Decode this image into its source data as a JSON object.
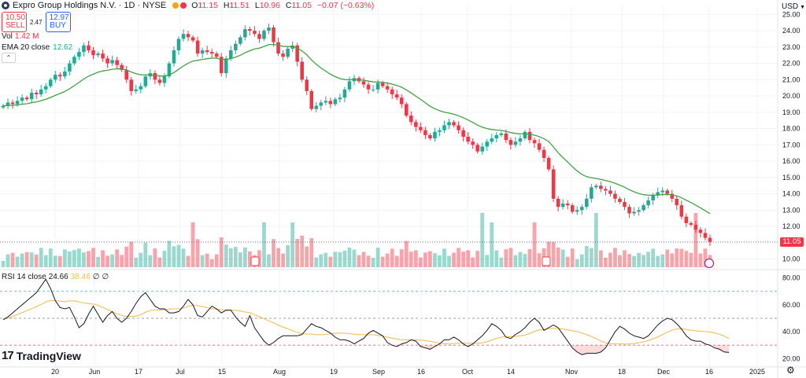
{
  "header": {
    "title": "Expro Group Holdings N.V. · 1D · NYSE",
    "ohlc": {
      "open_label": "O",
      "open": "11.15",
      "high_label": "H",
      "high": "11.51",
      "low_label": "L",
      "low": "10.96",
      "close_label": "C",
      "close": "11.05",
      "change": "−0.07 (−0.63%)"
    },
    "sell_price": "10.50",
    "sell_label": "SELL",
    "spread": "2.47",
    "buy_price": "12.97",
    "buy_label": "BUY"
  },
  "volume_legend": {
    "label": "Vol",
    "value": "1.42 M"
  },
  "ema_legend": {
    "label": "EMA 20 close",
    "value": "12.62"
  },
  "rsi_legend": {
    "label": "RSI 14 close",
    "rsi": "24.66",
    "ma": "38.46",
    "extra1": "∅",
    "extra2": "∅"
  },
  "brand": {
    "name": "TradingView",
    "mark": "17"
  },
  "currency": "USD",
  "last_price_label": "11.05",
  "colors": {
    "up": "#22ab94",
    "down": "#f23645",
    "ema": "#43a047",
    "rsi": "#131722",
    "rsi_ma": "#f0c05a",
    "grid": "#f0f3fa"
  },
  "chart_data": [
    {
      "type": "candlestick",
      "title": "Expro Group Holdings N.V. · 1D · NYSE",
      "ylim": [
        9.5,
        25.5
      ],
      "y_ticks": [
        "10.00",
        "11.00",
        "12.00",
        "13.00",
        "14.00",
        "15.00",
        "16.00",
        "17.00",
        "18.00",
        "19.00",
        "20.00",
        "21.00",
        "22.00",
        "23.00",
        "24.00",
        "25.00"
      ],
      "x_ticks": [
        "20",
        "Jun",
        "17",
        "Jul",
        "15",
        "Aug",
        "19",
        "Sep",
        "16",
        "Oct",
        "14",
        "Nov",
        "18",
        "Dec",
        "16",
        "2025"
      ],
      "closes": [
        19.4,
        19.6,
        19.5,
        19.7,
        19.9,
        19.8,
        20.2,
        20.1,
        20.4,
        20.6,
        21.0,
        21.3,
        21.2,
        21.5,
        22.0,
        22.4,
        22.7,
        23.1,
        22.8,
        22.5,
        22.6,
        22.3,
        22.0,
        22.2,
        21.9,
        21.6,
        21.0,
        20.3,
        20.4,
        20.6,
        21.2,
        21.4,
        21.0,
        20.8,
        21.2,
        22.0,
        22.8,
        23.5,
        23.8,
        23.6,
        23.4,
        22.6,
        22.8,
        22.7,
        22.6,
        22.4,
        21.4,
        22.3,
        22.8,
        23.2,
        23.6,
        24.1,
        24.0,
        23.8,
        23.5,
        24.0,
        24.2,
        23.3,
        22.6,
        22.4,
        22.9,
        23.1,
        22.1,
        21.0,
        20.3,
        19.2,
        19.4,
        19.6,
        19.7,
        19.5,
        19.8,
        19.9,
        20.4,
        20.9,
        21.1,
        20.9,
        20.7,
        20.4,
        20.4,
        20.8,
        20.6,
        20.4,
        20.1,
        19.9,
        19.5,
        18.8,
        18.4,
        18.1,
        17.9,
        17.6,
        17.4,
        17.8,
        17.9,
        18.2,
        18.4,
        18.2,
        17.9,
        17.5,
        17.2,
        17.0,
        16.6,
        16.9,
        17.2,
        17.4,
        17.6,
        17.7,
        17.3,
        17.0,
        17.2,
        17.4,
        17.8,
        17.3,
        17.1,
        16.7,
        16.2,
        15.5,
        13.7,
        13.2,
        13.4,
        13.3,
        12.9,
        13.0,
        13.2,
        13.7,
        14.4,
        14.5,
        14.3,
        14.2,
        14.0,
        13.7,
        13.5,
        13.2,
        12.8,
        12.9,
        13.0,
        13.3,
        13.6,
        13.9,
        14.1,
        14.2,
        14.0,
        13.7,
        13.3,
        12.6,
        12.2,
        12.1,
        11.8,
        11.6,
        11.3,
        11.05
      ],
      "volume_label": "Vol",
      "ema_label": "EMA 20 close",
      "ema_last": 12.62,
      "last_close": 11.05
    },
    {
      "type": "line",
      "title": "RSI 14 close",
      "ylim": [
        15,
        85
      ],
      "y_ticks": [
        "20.00",
        "40.00",
        "60.00",
        "80.00"
      ],
      "bands": [
        30,
        50,
        70
      ],
      "rsi": [
        49,
        51,
        54,
        57,
        60,
        63,
        66,
        69,
        74,
        79,
        72,
        63,
        58,
        57,
        58,
        51,
        43,
        46,
        53,
        59,
        53,
        47,
        52,
        55,
        50,
        47,
        50,
        55,
        61,
        66,
        69,
        64,
        59,
        57,
        57,
        54,
        54,
        55,
        59,
        64,
        60,
        52,
        51,
        55,
        59,
        57,
        54,
        56,
        56,
        51,
        47,
        44,
        52,
        43,
        38,
        33,
        30,
        32,
        35,
        37,
        37,
        37,
        37,
        38,
        42,
        46,
        44,
        43,
        41,
        39,
        36,
        34,
        34,
        33,
        31,
        33,
        35,
        39,
        41,
        39,
        37,
        32,
        30,
        29,
        31,
        32,
        34,
        33,
        29,
        28,
        27,
        29,
        31,
        34,
        34,
        36,
        34,
        31,
        29,
        31,
        34,
        37,
        41,
        46,
        44,
        41,
        36,
        35,
        38,
        40,
        43,
        47,
        50,
        47,
        41,
        43,
        45,
        43,
        38,
        33,
        28,
        25,
        23,
        24,
        24,
        24,
        25,
        28,
        34,
        40,
        44,
        42,
        39,
        37,
        36,
        35,
        37,
        41,
        45,
        48,
        50,
        49,
        46,
        42,
        37,
        34,
        33,
        33,
        31,
        30,
        28,
        27,
        25,
        24.66
      ],
      "rsi_label": "RSI 14 close",
      "rsi_last": 24.66,
      "ma_last": 38.46
    }
  ]
}
